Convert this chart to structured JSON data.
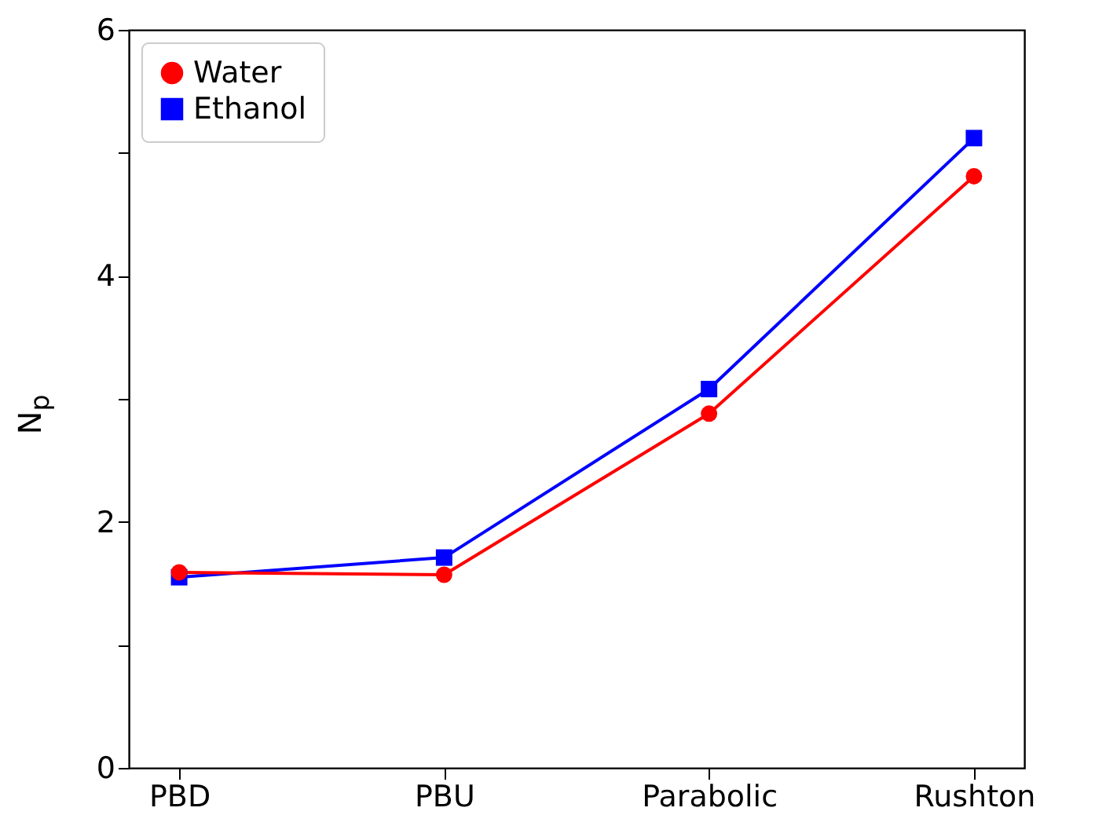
{
  "chart_data": {
    "type": "line",
    "ylabel": "N$_{p}$",
    "categories": [
      "PBD",
      "PBU",
      "Parabolic",
      "Rushton"
    ],
    "series": [
      {
        "name": "Water",
        "color": "#ff0000",
        "marker": "circle",
        "values": [
          1.59,
          1.57,
          2.88,
          4.81
        ]
      },
      {
        "name": "Ethanol",
        "color": "#0000ff",
        "marker": "square",
        "values": [
          1.55,
          1.71,
          3.08,
          5.12
        ]
      }
    ],
    "ylim": [
      0,
      6
    ],
    "yticks": [
      0,
      {
        "value": 1,
        "label": null
      },
      2,
      {
        "value": 3,
        "label": null
      },
      4,
      {
        "value": 5,
        "label": null
      },
      6
    ],
    "legend": "top left",
    "grid": false
  }
}
